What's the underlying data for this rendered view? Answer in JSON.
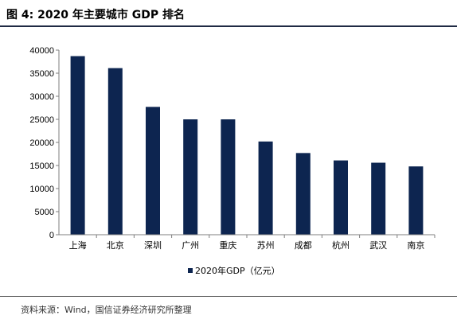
{
  "figure": {
    "title": "图 4:  2020 年主要城市 GDP 排名",
    "source": "资料来源：Wind，国信证券经济研究所整理"
  },
  "colors": {
    "bar": "#0d2550",
    "axis": "#7f7f7f",
    "rule": "#1f2a44"
  },
  "chart_data": {
    "type": "bar",
    "title": "",
    "xlabel": "",
    "ylabel": "",
    "categories": [
      "上海",
      "北京",
      "深圳",
      "广州",
      "重庆",
      "苏州",
      "成都",
      "杭州",
      "武汉",
      "南京"
    ],
    "series": [
      {
        "name": "2020年GDP（亿元）",
        "values": [
          38700,
          36100,
          27700,
          25000,
          25000,
          20200,
          17700,
          16100,
          15600,
          14800
        ]
      }
    ],
    "ylim": [
      0,
      40000
    ],
    "yticks": [
      0,
      5000,
      10000,
      15000,
      20000,
      25000,
      30000,
      35000,
      40000
    ],
    "grid": false,
    "legend_position": "bottom"
  }
}
